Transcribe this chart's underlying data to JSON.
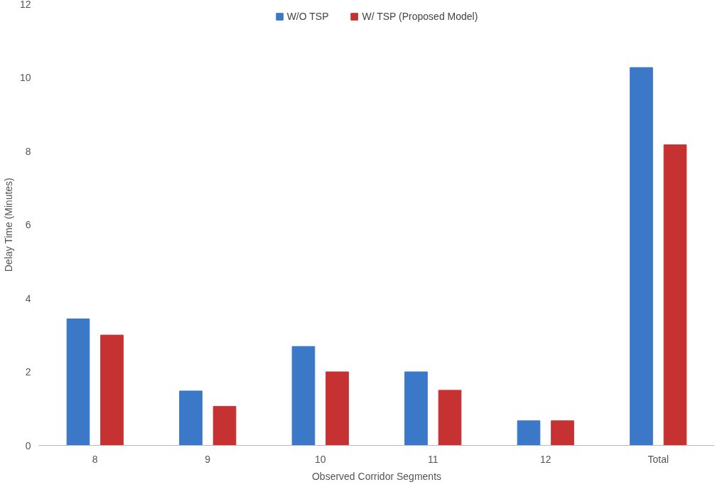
{
  "chart_data": {
    "type": "bar",
    "xlabel": "Observed Corridor Segments",
    "ylabel": "Delay Time (Minutes)",
    "categories": [
      "8",
      "9",
      "10",
      "11",
      "12",
      "Total"
    ],
    "series": [
      {
        "name": "W/O TSP",
        "color": "#3b78c8",
        "values": [
          3.44,
          1.48,
          2.69,
          2.0,
          0.67,
          10.27
        ]
      },
      {
        "name": "W/ TSP (Proposed Model)",
        "color": "#c63232",
        "values": [
          3.0,
          1.06,
          2.0,
          1.5,
          0.67,
          8.17
        ]
      }
    ],
    "ylim": [
      0,
      12
    ],
    "yticks": [
      0,
      2,
      4,
      6,
      8,
      10,
      12
    ],
    "grid": false,
    "legend": "top"
  }
}
